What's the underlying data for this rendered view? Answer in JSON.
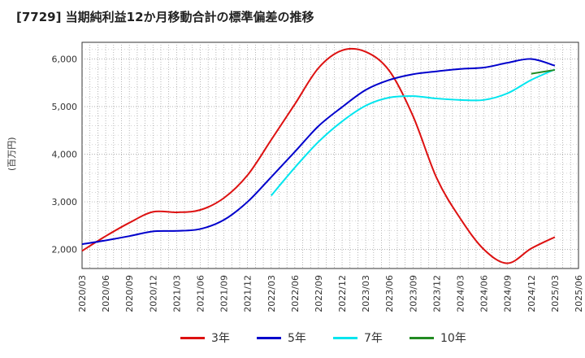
{
  "title": "[7729]  当期純利益12か月移動合計の標準偏差の推移",
  "ylabel": "(百万円)",
  "chart_data": {
    "type": "line",
    "title": "[7729]  当期純利益12か月移動合計の標準偏差の推移",
    "ylabel": "(百万円)",
    "xlabel": "",
    "ylim": [
      1600,
      6350
    ],
    "yticks": [
      2000,
      3000,
      4000,
      5000,
      6000
    ],
    "ytick_labels": [
      "2,000",
      "3,000",
      "4,000",
      "5,000",
      "6,000"
    ],
    "xlim": [
      "2020/03",
      "2025/06"
    ],
    "xtick_labels": [
      "2020/03",
      "2020/06",
      "2020/09",
      "2020/12",
      "2021/03",
      "2021/06",
      "2021/09",
      "2021/12",
      "2022/03",
      "2022/06",
      "2022/09",
      "2022/12",
      "2023/03",
      "2023/06",
      "2023/09",
      "2023/12",
      "2024/03",
      "2024/06",
      "2024/09",
      "2024/12",
      "2025/03",
      "2025/06"
    ],
    "grid": true,
    "legend_position": "bottom",
    "series": [
      {
        "name": "3年",
        "color": "#dd1111",
        "x": [
          "2020/03",
          "2020/06",
          "2020/09",
          "2020/12",
          "2021/03",
          "2021/06",
          "2021/09",
          "2021/12",
          "2022/03",
          "2022/06",
          "2022/09",
          "2022/12",
          "2023/03",
          "2023/06",
          "2023/09",
          "2023/12",
          "2024/03",
          "2024/06",
          "2024/09",
          "2024/12",
          "2025/03"
        ],
        "values": [
          1970,
          2280,
          2560,
          2790,
          2780,
          2830,
          3080,
          3560,
          4300,
          5050,
          5810,
          6180,
          6150,
          5750,
          4800,
          3500,
          2650,
          2000,
          1710,
          2020,
          2260
        ]
      },
      {
        "name": "5年",
        "color": "#0000cc",
        "x": [
          "2020/03",
          "2020/06",
          "2020/09",
          "2020/12",
          "2021/03",
          "2021/06",
          "2021/09",
          "2021/12",
          "2022/03",
          "2022/06",
          "2022/09",
          "2022/12",
          "2023/03",
          "2023/06",
          "2023/09",
          "2023/12",
          "2024/03",
          "2024/06",
          "2024/09",
          "2024/12",
          "2025/03"
        ],
        "values": [
          2110,
          2190,
          2280,
          2380,
          2390,
          2430,
          2620,
          3000,
          3520,
          4050,
          4590,
          4990,
          5350,
          5560,
          5680,
          5740,
          5790,
          5820,
          5920,
          6000,
          5860
        ]
      },
      {
        "name": "7年",
        "color": "#00e5ee",
        "x": [
          "2022/03",
          "2022/06",
          "2022/09",
          "2022/12",
          "2023/03",
          "2023/06",
          "2023/09",
          "2023/12",
          "2024/03",
          "2024/06",
          "2024/09",
          "2024/12",
          "2025/03"
        ],
        "values": [
          3130,
          3720,
          4260,
          4690,
          5020,
          5190,
          5220,
          5170,
          5140,
          5140,
          5280,
          5560,
          5780
        ]
      },
      {
        "name": "10年",
        "color": "#228b22",
        "x": [
          "2024/12",
          "2025/03"
        ],
        "values": [
          5690,
          5770
        ]
      }
    ]
  }
}
